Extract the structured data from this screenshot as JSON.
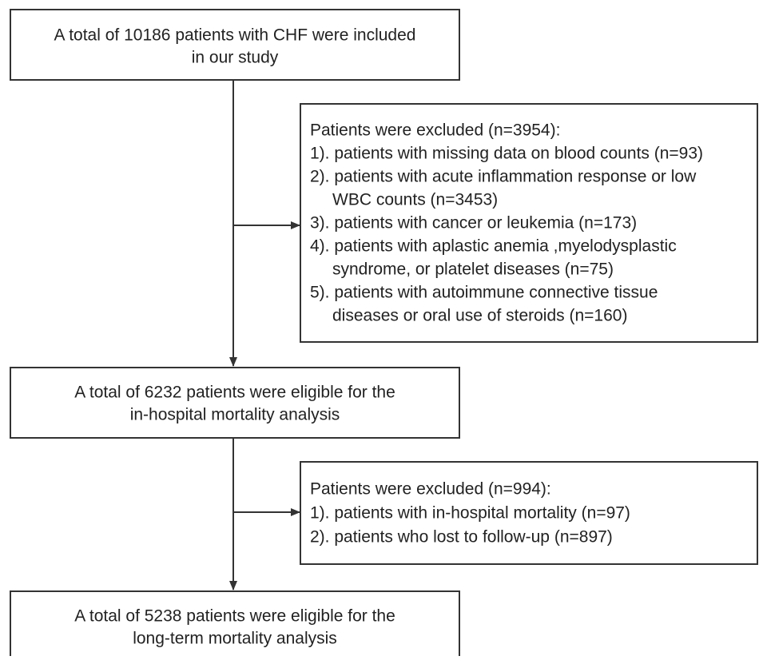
{
  "nodes": [
    {
      "lines": [
        "A total of 10186 patients with CHF were included",
        "in our study"
      ]
    },
    {
      "lines": [
        "A total of 6232 patients were eligible for the",
        "in-hospital mortality analysis"
      ]
    },
    {
      "lines": [
        "A total of 5238 patients were eligible for the",
        "long-term mortality analysis"
      ]
    }
  ],
  "exclusions": [
    {
      "heading": "Patients were excluded (n=3954):",
      "items": [
        [
          "1). patients with missing data on blood counts (n=93)"
        ],
        [
          "2). patients with acute inflammation response or low",
          "WBC counts (n=3453)"
        ],
        [
          "3). patients with cancer or leukemia (n=173)"
        ],
        [
          "4). patients with aplastic anemia ,myelodysplastic",
          "syndrome, or platelet diseases (n=75)"
        ],
        [
          "5). patients with autoimmune connective tissue",
          "diseases or oral use of steroids (n=160)"
        ]
      ]
    },
    {
      "heading": "Patients were excluded (n=994):",
      "items": [
        [
          "1). patients with in-hospital mortality (n=97)"
        ],
        [
          "2). patients who lost to follow-up (n=897)"
        ]
      ]
    }
  ]
}
